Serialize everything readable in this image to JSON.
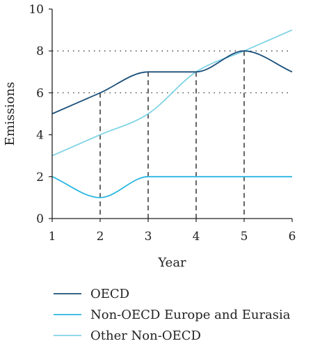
{
  "chart_data": {
    "type": "line",
    "title": "",
    "xlabel": "Year",
    "ylabel": "Emissions",
    "xlim": [
      1,
      6
    ],
    "ylim": [
      0,
      10
    ],
    "x": [
      1,
      2,
      3,
      4,
      5,
      6
    ],
    "x_ticks": [
      "1",
      "2",
      "3",
      "4",
      "5",
      "6"
    ],
    "y_ticks": [
      "0",
      "2",
      "4",
      "6",
      "8",
      "10"
    ],
    "grid": "dotted horizontal at 6 and 8; dashed vertical drops at x = 2, 3, 4, 5",
    "legend_position": "bottom",
    "series": [
      {
        "name": "OECD",
        "color": "#1a4f7a",
        "values": [
          5,
          6,
          7,
          7,
          8,
          7
        ]
      },
      {
        "name": "Non-OECD Europe and Eurasia",
        "color": "#29b6e0",
        "values": [
          2,
          1,
          2,
          2,
          2,
          2
        ]
      },
      {
        "name": "Other Non-OECD",
        "color": "#7fd3e6",
        "values": [
          3,
          4,
          5,
          7,
          8,
          9
        ]
      }
    ]
  }
}
